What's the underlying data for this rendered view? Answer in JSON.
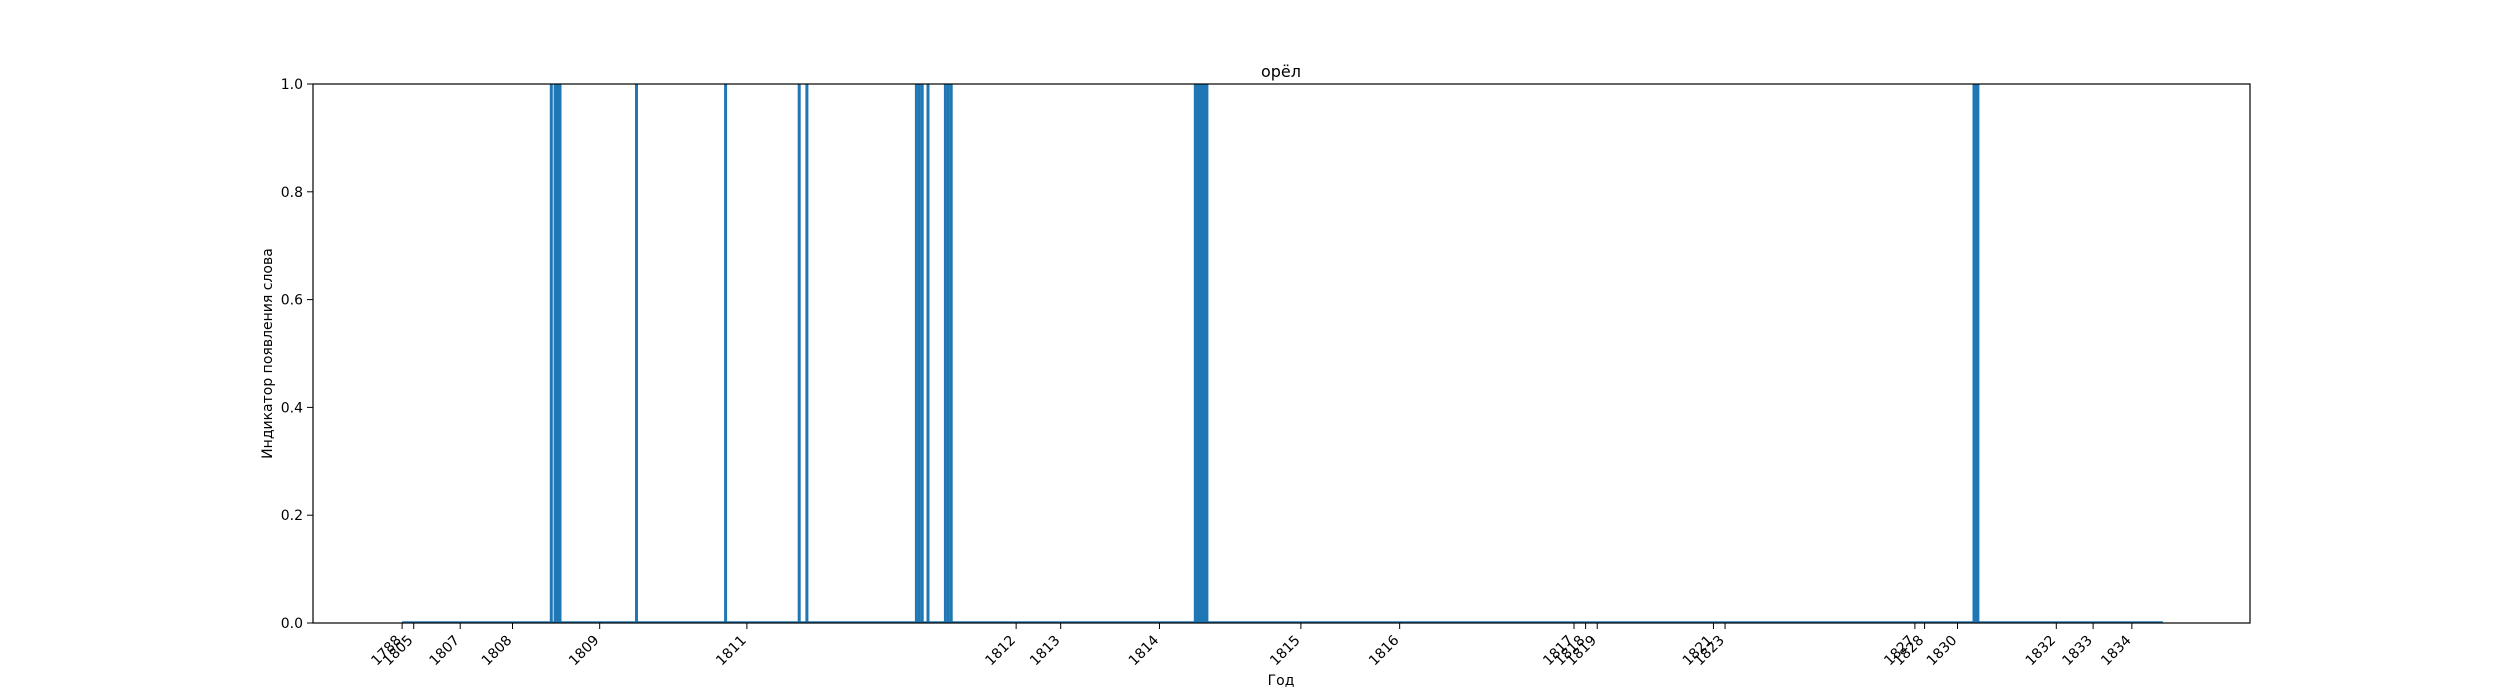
{
  "chart_data": {
    "type": "bar",
    "title": "орёл",
    "xlabel": "Год",
    "ylabel": "Индикатор появления слова",
    "ylim": [
      0,
      1
    ],
    "y_ticks": [
      "0.0",
      "0.2",
      "0.4",
      "0.6",
      "0.8",
      "1.0"
    ],
    "x_tick_labels": [
      "1788",
      "1805",
      "1807",
      "1808",
      "1809",
      "1811",
      "1812",
      "1813",
      "1814",
      "1815",
      "1816",
      "1817",
      "1818",
      "1819",
      "1821",
      "1823",
      "1827",
      "1828",
      "1830",
      "1832",
      "1833",
      "1834"
    ],
    "bar_color": "#1f77b4",
    "grid": false,
    "legend": "none",
    "bars": [
      {
        "position": 0.123,
        "value": 1
      },
      {
        "position": 0.125,
        "value": 1
      },
      {
        "position": 0.1263,
        "value": 1
      },
      {
        "position": 0.1275,
        "value": 1
      },
      {
        "position": 0.167,
        "value": 1
      },
      {
        "position": 0.213,
        "value": 1
      },
      {
        "position": 0.251,
        "value": 1
      },
      {
        "position": 0.255,
        "value": 1
      },
      {
        "position": 0.3115,
        "value": 1
      },
      {
        "position": 0.313,
        "value": 1
      },
      {
        "position": 0.3145,
        "value": 1
      },
      {
        "position": 0.3175,
        "value": 1
      },
      {
        "position": 0.3265,
        "value": 1
      },
      {
        "position": 0.328,
        "value": 1
      },
      {
        "position": 0.3295,
        "value": 1
      },
      {
        "position": 0.4555,
        "value": 1
      },
      {
        "position": 0.4565,
        "value": 1
      },
      {
        "position": 0.4575,
        "value": 1
      },
      {
        "position": 0.4585,
        "value": 1
      },
      {
        "position": 0.4595,
        "value": 1
      },
      {
        "position": 0.4605,
        "value": 1
      },
      {
        "position": 0.4615,
        "value": 1
      },
      {
        "position": 0.8575,
        "value": 1
      },
      {
        "position": 0.8585,
        "value": 1
      },
      {
        "position": 0.8595,
        "value": 1
      }
    ]
  }
}
